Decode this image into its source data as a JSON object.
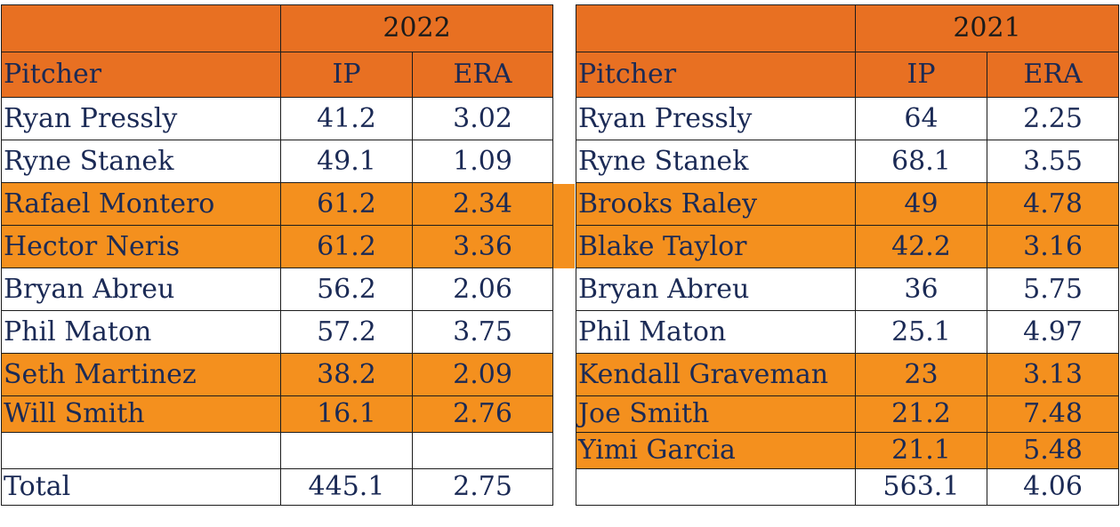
{
  "tables": [
    {
      "year": "2022",
      "headers": {
        "pitcher": "Pitcher",
        "ip": "IP",
        "era": "ERA"
      },
      "rows": [
        {
          "pitcher": "Ryan Pressly",
          "ip": "41.2",
          "era": "3.02",
          "highlight": false
        },
        {
          "pitcher": "Ryne Stanek",
          "ip": "49.1",
          "era": "1.09",
          "highlight": false
        },
        {
          "pitcher": "Rafael Montero",
          "ip": "61.2",
          "era": "2.34",
          "highlight": true
        },
        {
          "pitcher": "Hector Neris",
          "ip": "61.2",
          "era": "3.36",
          "highlight": true
        },
        {
          "pitcher": "Bryan Abreu",
          "ip": "56.2",
          "era": "2.06",
          "highlight": false
        },
        {
          "pitcher": "Phil Maton",
          "ip": "57.2",
          "era": "3.75",
          "highlight": false
        },
        {
          "pitcher": "Seth Martinez",
          "ip": "38.2",
          "era": "2.09",
          "highlight": true
        },
        {
          "pitcher": "Will Smith",
          "ip": "16.1",
          "era": "2.76",
          "highlight": true
        },
        {
          "pitcher": "",
          "ip": "",
          "era": "",
          "highlight": false
        }
      ],
      "total": {
        "label": "Total",
        "ip": "445.1",
        "era": "2.75"
      }
    },
    {
      "year": "2021",
      "headers": {
        "pitcher": "Pitcher",
        "ip": "IP",
        "era": "ERA"
      },
      "rows": [
        {
          "pitcher": "Ryan Pressly",
          "ip": "64",
          "era": "2.25",
          "highlight": false
        },
        {
          "pitcher": "Ryne Stanek",
          "ip": "68.1",
          "era": "3.55",
          "highlight": false
        },
        {
          "pitcher": "Brooks Raley",
          "ip": "49",
          "era": "4.78",
          "highlight": true
        },
        {
          "pitcher": "Blake Taylor",
          "ip": "42.2",
          "era": "3.16",
          "highlight": true
        },
        {
          "pitcher": "Bryan Abreu",
          "ip": "36",
          "era": "5.75",
          "highlight": false
        },
        {
          "pitcher": "Phil Maton",
          "ip": "25.1",
          "era": "4.97",
          "highlight": false
        },
        {
          "pitcher": "Kendall Graveman",
          "ip": "23",
          "era": "3.13",
          "highlight": true
        },
        {
          "pitcher": "Joe Smith",
          "ip": "21.2",
          "era": "7.48",
          "highlight": true
        },
        {
          "pitcher": "Yimi Garcia",
          "ip": "21.1",
          "era": "5.48",
          "highlight": true
        }
      ],
      "total": {
        "label": "",
        "ip": "563.1",
        "era": "4.06"
      }
    }
  ],
  "colors": {
    "header": "#e87022",
    "highlight": "#f4901e",
    "text": "#1b2a55"
  }
}
